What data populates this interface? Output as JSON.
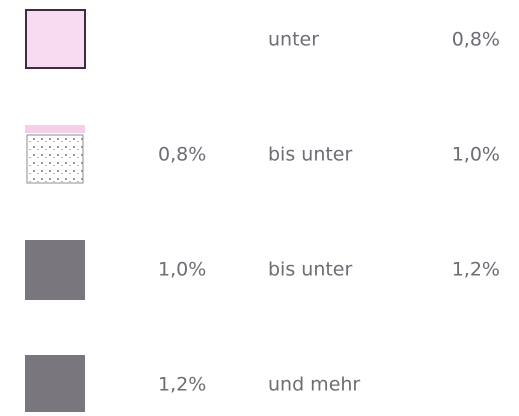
{
  "legend": {
    "items": [
      {
        "connector": "unter",
        "to": "0,8%",
        "color": "#f7dcf1"
      },
      {
        "from": "0,8%",
        "connector": "bis unter",
        "to": "1,0%",
        "color": "#ffffff"
      },
      {
        "from": "1,0%",
        "connector": "bis unter",
        "to": "1,2%",
        "color": "#79777d"
      },
      {
        "from": "1,2%",
        "connector": "und mehr",
        "color": "#79777d"
      }
    ]
  }
}
